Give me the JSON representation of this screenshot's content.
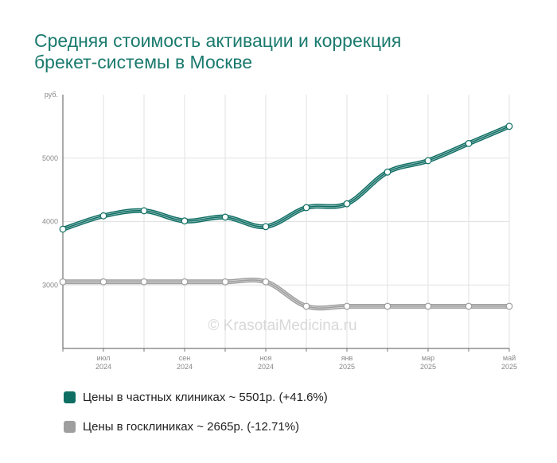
{
  "title_line1": "Средняя стоимость активации и коррекция",
  "title_line2": "брекет-системы в Москве",
  "watermark": "© KrasotaiMedicina.ru",
  "colors": {
    "private": "#0f6e64",
    "public": "#9e9e9e"
  },
  "chart_data": {
    "type": "line",
    "title": "Средняя стоимость активации и коррекция брекет-системы в Москве",
    "ylabel": "руб.",
    "ylim": [
      2000,
      6000
    ],
    "yticks": [
      "3000",
      "4000",
      "5000"
    ],
    "grid": true,
    "legend_position": "bottom",
    "x": [
      "2024-06",
      "2024-07",
      "2024-08",
      "2024-09",
      "2024-10",
      "2024-11",
      "2024-12",
      "2025-01",
      "2025-02",
      "2025-03",
      "2025-04",
      "2025-05"
    ],
    "xticks": [
      {
        "month": "июл",
        "year": "2024",
        "index": 1
      },
      {
        "month": "сен",
        "year": "2024",
        "index": 3
      },
      {
        "month": "ноя",
        "year": "2024",
        "index": 5
      },
      {
        "month": "янв",
        "year": "2025",
        "index": 7
      },
      {
        "month": "мар",
        "year": "2025",
        "index": 9
      },
      {
        "month": "май",
        "year": "2025",
        "index": 11
      }
    ],
    "series": [
      {
        "name": "Цены в частных клиниках",
        "legend": "Цены в частных клиниках ~ 5501р. (+41.6%)",
        "values": [
          3880,
          4090,
          4170,
          4010,
          4070,
          3920,
          4220,
          4280,
          4780,
          4960,
          5230,
          5501
        ]
      },
      {
        "name": "Цены в госклиниках",
        "legend": "Цены в госклиниках ~ 2665р. (-12.71%)",
        "values": [
          3050,
          3050,
          3050,
          3050,
          3050,
          3050,
          2665,
          2665,
          2665,
          2665,
          2665,
          2665
        ]
      }
    ]
  }
}
